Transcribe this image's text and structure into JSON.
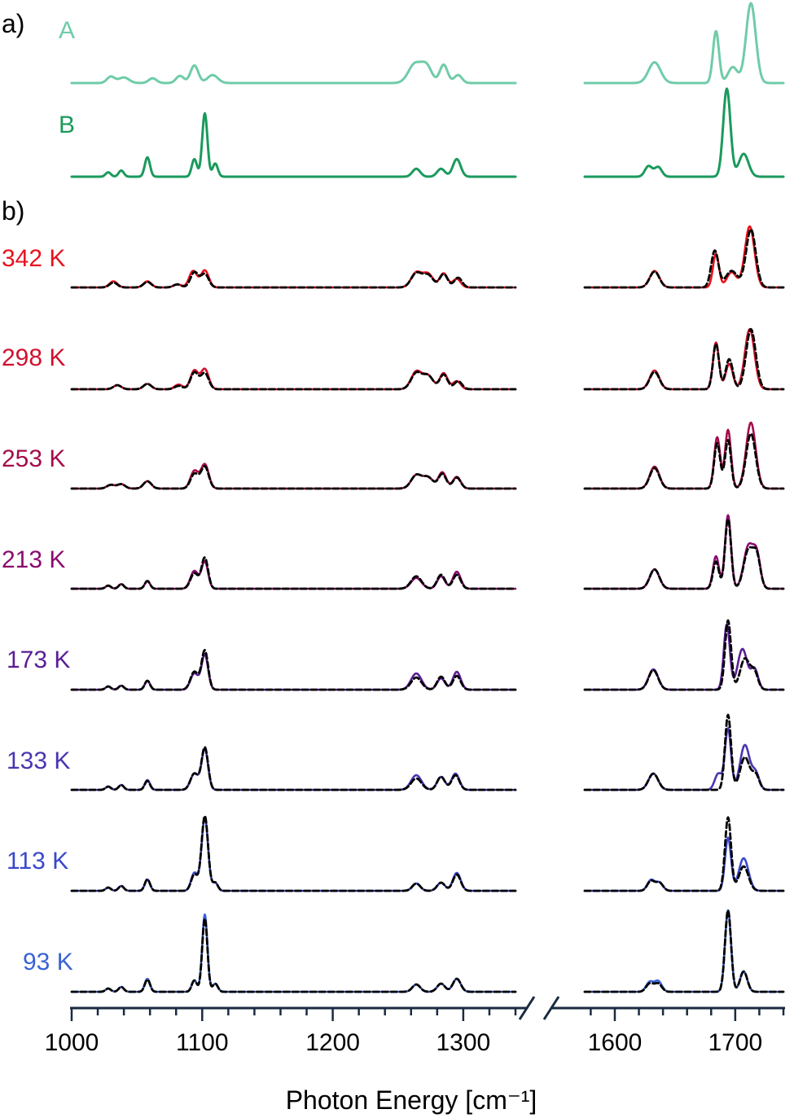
{
  "figure": {
    "panel_a_label": "a)",
    "panel_b_label": "b)",
    "xlabel": "Photon Energy [cm⁻¹]"
  },
  "chart_data": {
    "type": "line",
    "xlabel": "Photon Energy [cm⁻¹]",
    "broken_x_axis": true,
    "segments": [
      {
        "xlim": [
          1000,
          1340
        ],
        "ticks": [
          1000,
          1100,
          1200,
          1300
        ],
        "minor_step": 20
      },
      {
        "xlim": [
          1575,
          1740
        ],
        "ticks": [
          1600,
          1700
        ],
        "minor_step": 20
      }
    ],
    "reference_spectra": [
      {
        "name": "A",
        "color": "#6fcca8",
        "peaks": [
          [
            1030,
            0.08,
            3
          ],
          [
            1040,
            0.07,
            4
          ],
          [
            1062,
            0.06,
            3
          ],
          [
            1083,
            0.09,
            3
          ],
          [
            1094,
            0.22,
            3
          ],
          [
            1108,
            0.1,
            4
          ],
          [
            1263,
            0.24,
            5
          ],
          [
            1272,
            0.2,
            4
          ],
          [
            1285,
            0.23,
            3
          ],
          [
            1296,
            0.1,
            3
          ],
          [
            1633,
            0.26,
            5
          ],
          [
            1684,
            0.65,
            2.5
          ],
          [
            1698,
            0.2,
            4
          ],
          [
            1713,
            1.0,
            4
          ]
        ]
      },
      {
        "name": "B",
        "color": "#1a9a5c",
        "peaks": [
          [
            1028,
            0.05,
            2
          ],
          [
            1038,
            0.07,
            2
          ],
          [
            1058,
            0.22,
            2
          ],
          [
            1094,
            0.2,
            2
          ],
          [
            1102,
            0.72,
            2
          ],
          [
            1110,
            0.15,
            2
          ],
          [
            1264,
            0.09,
            3
          ],
          [
            1283,
            0.09,
            3
          ],
          [
            1295,
            0.2,
            3
          ],
          [
            1628,
            0.12,
            3
          ],
          [
            1636,
            0.11,
            3
          ],
          [
            1693,
            1.0,
            3
          ],
          [
            1707,
            0.26,
            4
          ]
        ]
      }
    ],
    "temperature_series": [
      {
        "name": "342 K",
        "color": "#e8121f",
        "scale": 0.75,
        "measured": [
          [
            1032,
            0.1,
            3
          ],
          [
            1058,
            0.1,
            3
          ],
          [
            1081,
            0.05,
            3
          ],
          [
            1093,
            0.27,
            3
          ],
          [
            1102,
            0.28,
            3
          ],
          [
            1264,
            0.24,
            4
          ],
          [
            1273,
            0.22,
            4
          ],
          [
            1285,
            0.23,
            3
          ],
          [
            1295,
            0.14,
            3
          ],
          [
            1633,
            0.27,
            4
          ],
          [
            1684,
            0.55,
            2.5
          ],
          [
            1697,
            0.25,
            4
          ],
          [
            1712,
            1.0,
            4
          ]
        ],
        "fit": [
          [
            1032,
            0.08,
            3
          ],
          [
            1058,
            0.09,
            3
          ],
          [
            1081,
            0.05,
            3
          ],
          [
            1094,
            0.25,
            3
          ],
          [
            1102,
            0.22,
            3
          ],
          [
            1264,
            0.23,
            4
          ],
          [
            1273,
            0.2,
            4
          ],
          [
            1285,
            0.22,
            3
          ],
          [
            1296,
            0.16,
            3
          ],
          [
            1633,
            0.26,
            4
          ],
          [
            1683,
            0.6,
            3
          ],
          [
            1697,
            0.27,
            5
          ],
          [
            1713,
            0.95,
            4
          ]
        ]
      },
      {
        "name": "298 K",
        "color": "#d0112e",
        "scale": 0.82,
        "measured": [
          [
            1035,
            0.06,
            3
          ],
          [
            1058,
            0.08,
            3
          ],
          [
            1082,
            0.07,
            3
          ],
          [
            1094,
            0.28,
            3
          ],
          [
            1102,
            0.3,
            3
          ],
          [
            1264,
            0.26,
            4
          ],
          [
            1273,
            0.2,
            4
          ],
          [
            1285,
            0.24,
            3
          ],
          [
            1295,
            0.12,
            3
          ],
          [
            1633,
            0.28,
            4
          ],
          [
            1684,
            0.7,
            2.5
          ],
          [
            1695,
            0.38,
            3
          ],
          [
            1712,
            0.9,
            4
          ]
        ],
        "fit": [
          [
            1035,
            0.06,
            3
          ],
          [
            1058,
            0.08,
            3
          ],
          [
            1082,
            0.05,
            3
          ],
          [
            1094,
            0.25,
            3
          ],
          [
            1102,
            0.24,
            3
          ],
          [
            1264,
            0.24,
            4
          ],
          [
            1273,
            0.2,
            4
          ],
          [
            1285,
            0.22,
            3
          ],
          [
            1296,
            0.12,
            3
          ],
          [
            1633,
            0.26,
            4
          ],
          [
            1684,
            0.68,
            2.5
          ],
          [
            1695,
            0.45,
            3
          ],
          [
            1713,
            0.9,
            4
          ]
        ]
      },
      {
        "name": "253 K",
        "color": "#a50c4a",
        "scale": 0.9,
        "measured": [
          [
            1030,
            0.05,
            3
          ],
          [
            1038,
            0.06,
            3
          ],
          [
            1058,
            0.1,
            3
          ],
          [
            1094,
            0.24,
            3
          ],
          [
            1102,
            0.33,
            3
          ],
          [
            1264,
            0.18,
            4
          ],
          [
            1273,
            0.15,
            4
          ],
          [
            1284,
            0.22,
            3
          ],
          [
            1295,
            0.16,
            3
          ],
          [
            1633,
            0.3,
            4
          ],
          [
            1685,
            0.7,
            2.5
          ],
          [
            1694,
            0.8,
            2.5
          ],
          [
            1713,
            0.9,
            4
          ]
        ],
        "fit": [
          [
            1030,
            0.05,
            3
          ],
          [
            1038,
            0.06,
            3
          ],
          [
            1058,
            0.1,
            3
          ],
          [
            1094,
            0.2,
            3
          ],
          [
            1102,
            0.3,
            3
          ],
          [
            1264,
            0.18,
            4
          ],
          [
            1273,
            0.15,
            4
          ],
          [
            1284,
            0.2,
            3
          ],
          [
            1295,
            0.15,
            3
          ],
          [
            1633,
            0.28,
            4
          ],
          [
            1685,
            0.62,
            2.5
          ],
          [
            1694,
            0.66,
            2.5
          ],
          [
            1713,
            0.75,
            4
          ]
        ]
      },
      {
        "name": "213 K",
        "color": "#8a0c6e",
        "scale": 0.95,
        "measured": [
          [
            1028,
            0.04,
            2
          ],
          [
            1038,
            0.06,
            2
          ],
          [
            1058,
            0.1,
            2
          ],
          [
            1094,
            0.23,
            3
          ],
          [
            1102,
            0.35,
            2.5
          ],
          [
            1264,
            0.14,
            4
          ],
          [
            1283,
            0.16,
            3
          ],
          [
            1295,
            0.22,
            3
          ],
          [
            1633,
            0.25,
            4
          ],
          [
            1684,
            0.42,
            2.5
          ],
          [
            1694,
            0.95,
            2.5
          ],
          [
            1711,
            0.55,
            4
          ],
          [
            1718,
            0.4,
            3
          ]
        ],
        "fit": [
          [
            1028,
            0.04,
            2
          ],
          [
            1038,
            0.06,
            2
          ],
          [
            1058,
            0.1,
            2
          ],
          [
            1094,
            0.2,
            3
          ],
          [
            1102,
            0.4,
            2.5
          ],
          [
            1264,
            0.16,
            4
          ],
          [
            1283,
            0.18,
            3
          ],
          [
            1295,
            0.18,
            3
          ],
          [
            1633,
            0.25,
            4
          ],
          [
            1684,
            0.35,
            2.5
          ],
          [
            1694,
            0.9,
            2.5
          ],
          [
            1711,
            0.5,
            4
          ],
          [
            1718,
            0.38,
            3
          ]
        ]
      },
      {
        "name": "173 K",
        "color": "#5a1e96",
        "scale": 1.0,
        "measured": [
          [
            1028,
            0.04,
            2
          ],
          [
            1038,
            0.05,
            2
          ],
          [
            1058,
            0.11,
            2
          ],
          [
            1094,
            0.2,
            3
          ],
          [
            1102,
            0.43,
            2.5
          ],
          [
            1264,
            0.2,
            4
          ],
          [
            1283,
            0.14,
            3
          ],
          [
            1295,
            0.22,
            3
          ],
          [
            1632,
            0.25,
            4
          ],
          [
            1693,
            0.8,
            2.5
          ],
          [
            1706,
            0.5,
            4
          ],
          [
            1716,
            0.25,
            3
          ]
        ],
        "fit": [
          [
            1028,
            0.04,
            2
          ],
          [
            1038,
            0.05,
            2
          ],
          [
            1058,
            0.11,
            2
          ],
          [
            1094,
            0.22,
            3
          ],
          [
            1102,
            0.48,
            2.5
          ],
          [
            1264,
            0.15,
            4
          ],
          [
            1283,
            0.16,
            3
          ],
          [
            1295,
            0.17,
            3
          ],
          [
            1632,
            0.24,
            4
          ],
          [
            1694,
            0.85,
            2.5
          ],
          [
            1708,
            0.38,
            4
          ],
          [
            1716,
            0.2,
            3
          ]
        ]
      },
      {
        "name": "133 K",
        "color": "#4a35b2",
        "scale": 1.0,
        "measured": [
          [
            1028,
            0.04,
            2
          ],
          [
            1038,
            0.06,
            2
          ],
          [
            1058,
            0.12,
            2
          ],
          [
            1094,
            0.2,
            3
          ],
          [
            1102,
            0.5,
            2.5
          ],
          [
            1264,
            0.18,
            4
          ],
          [
            1283,
            0.16,
            3
          ],
          [
            1294,
            0.2,
            3
          ],
          [
            1632,
            0.2,
            4
          ],
          [
            1686,
            0.2,
            3
          ],
          [
            1694,
            0.75,
            2.5
          ],
          [
            1708,
            0.55,
            4
          ],
          [
            1717,
            0.2,
            3
          ]
        ],
        "fit": [
          [
            1028,
            0.04,
            2
          ],
          [
            1038,
            0.06,
            2
          ],
          [
            1058,
            0.11,
            2
          ],
          [
            1094,
            0.2,
            3
          ],
          [
            1102,
            0.52,
            2.5
          ],
          [
            1264,
            0.14,
            4
          ],
          [
            1283,
            0.16,
            3
          ],
          [
            1294,
            0.18,
            3
          ],
          [
            1632,
            0.2,
            4
          ],
          [
            1694,
            0.92,
            2.5
          ],
          [
            1708,
            0.4,
            4
          ],
          [
            1717,
            0.18,
            3
          ]
        ]
      },
      {
        "name": "113 K",
        "color": "#3a48cc",
        "scale": 1.0,
        "measured": [
          [
            1028,
            0.04,
            2
          ],
          [
            1038,
            0.06,
            2
          ],
          [
            1058,
            0.14,
            2
          ],
          [
            1094,
            0.22,
            2.5
          ],
          [
            1102,
            0.9,
            2.5
          ],
          [
            1110,
            0.1,
            2
          ],
          [
            1264,
            0.09,
            3
          ],
          [
            1283,
            0.1,
            3
          ],
          [
            1295,
            0.22,
            3
          ],
          [
            1630,
            0.13,
            3
          ],
          [
            1637,
            0.1,
            3
          ],
          [
            1694,
            0.65,
            2.5
          ],
          [
            1707,
            0.4,
            4
          ]
        ],
        "fit": [
          [
            1028,
            0.04,
            2
          ],
          [
            1038,
            0.06,
            2
          ],
          [
            1058,
            0.14,
            2
          ],
          [
            1094,
            0.2,
            2.5
          ],
          [
            1102,
            0.92,
            2.5
          ],
          [
            1110,
            0.1,
            2
          ],
          [
            1264,
            0.09,
            3
          ],
          [
            1283,
            0.1,
            3
          ],
          [
            1295,
            0.2,
            3
          ],
          [
            1630,
            0.12,
            3
          ],
          [
            1637,
            0.1,
            3
          ],
          [
            1694,
            0.9,
            2.5
          ],
          [
            1707,
            0.3,
            4
          ]
        ]
      },
      {
        "name": "93 K",
        "color": "#3a62d6",
        "scale": 1.0,
        "measured": [
          [
            1028,
            0.04,
            2
          ],
          [
            1038,
            0.06,
            2
          ],
          [
            1058,
            0.16,
            2
          ],
          [
            1094,
            0.14,
            2
          ],
          [
            1102,
            0.95,
            2
          ],
          [
            1110,
            0.1,
            2
          ],
          [
            1264,
            0.09,
            3
          ],
          [
            1283,
            0.1,
            3
          ],
          [
            1295,
            0.16,
            3
          ],
          [
            1629,
            0.12,
            3
          ],
          [
            1636,
            0.13,
            3
          ],
          [
            1694,
            1.0,
            2.5
          ],
          [
            1707,
            0.25,
            3
          ]
        ],
        "fit": [
          [
            1028,
            0.04,
            2
          ],
          [
            1038,
            0.06,
            2
          ],
          [
            1058,
            0.15,
            2
          ],
          [
            1094,
            0.14,
            2
          ],
          [
            1102,
            0.9,
            2
          ],
          [
            1110,
            0.1,
            2
          ],
          [
            1264,
            0.09,
            3
          ],
          [
            1283,
            0.1,
            3
          ],
          [
            1295,
            0.16,
            3
          ],
          [
            1629,
            0.1,
            3
          ],
          [
            1636,
            0.1,
            3
          ],
          [
            1694,
            1.0,
            2.5
          ],
          [
            1707,
            0.25,
            3
          ]
        ]
      }
    ],
    "fit_style": {
      "color": "#000000",
      "dash": "dashed"
    }
  }
}
